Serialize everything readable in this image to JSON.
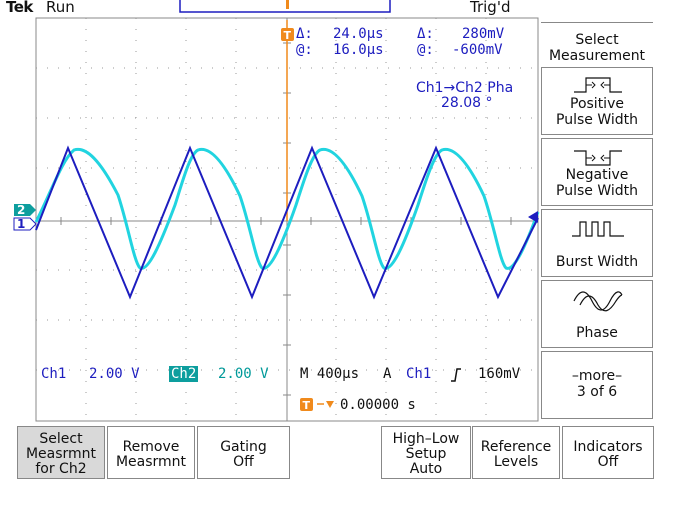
{
  "header": {
    "brand": "Tek",
    "run_status": "Run",
    "trigger_status": "Trig'd"
  },
  "cursors": {
    "delta_time": "24.0µs",
    "at_time": "16.0µs",
    "delta_volts": "280mV",
    "at_volts": "-600mV",
    "delta_symbol": "Δ:",
    "at_symbol": "@:"
  },
  "measurement": {
    "label": "Ch1→Ch2 Pha",
    "value": "28.08 °"
  },
  "channel_markers": {
    "ch1": "1",
    "ch2": "2"
  },
  "readouts": {
    "ch1_label": "Ch1",
    "ch1_scale": "2.00 V",
    "ch2_label": "Ch2",
    "ch2_scale": "2.00 V",
    "timebase": "M 400µs",
    "trigger_mode": "A",
    "trigger_source": "Ch1",
    "trigger_slope_icon": "rising-edge-icon",
    "trigger_level": "160mV",
    "trigger_position": "0.00000 s"
  },
  "side_menu": {
    "title_line1": "Select",
    "title_line2": "Measurement",
    "items": [
      {
        "line1": "Positive",
        "line2": "Pulse Width",
        "icon": "positive-pulse-icon"
      },
      {
        "line1": "Negative",
        "line2": "Pulse Width",
        "icon": "negative-pulse-icon"
      },
      {
        "line1": "Burst Width",
        "line2": "",
        "icon": "burst-icon"
      },
      {
        "line1": "Phase",
        "line2": "",
        "icon": "phase-icon"
      },
      {
        "line1": "–more–",
        "line2": "3 of 6",
        "icon": ""
      }
    ]
  },
  "bottom_menu": {
    "items": [
      {
        "line1": "Select",
        "line2": "Measrmnt",
        "line3": "for Ch2",
        "active": true
      },
      {
        "line1": "Remove",
        "line2": "Measrmnt",
        "line3": ""
      },
      {
        "line1": "Gating",
        "line2": "Off",
        "line3": ""
      },
      {
        "line1": "High–Low",
        "line2": "Setup",
        "line3": "Auto"
      },
      {
        "line1": "Reference",
        "line2": "Levels",
        "line3": ""
      },
      {
        "line1": "Indicators",
        "line2": "Off",
        "line3": ""
      }
    ]
  },
  "colors": {
    "ch1": "#1d1dbf",
    "ch2": "#21d4e0",
    "accent": "#f08a1c",
    "grid": "#888888"
  }
}
